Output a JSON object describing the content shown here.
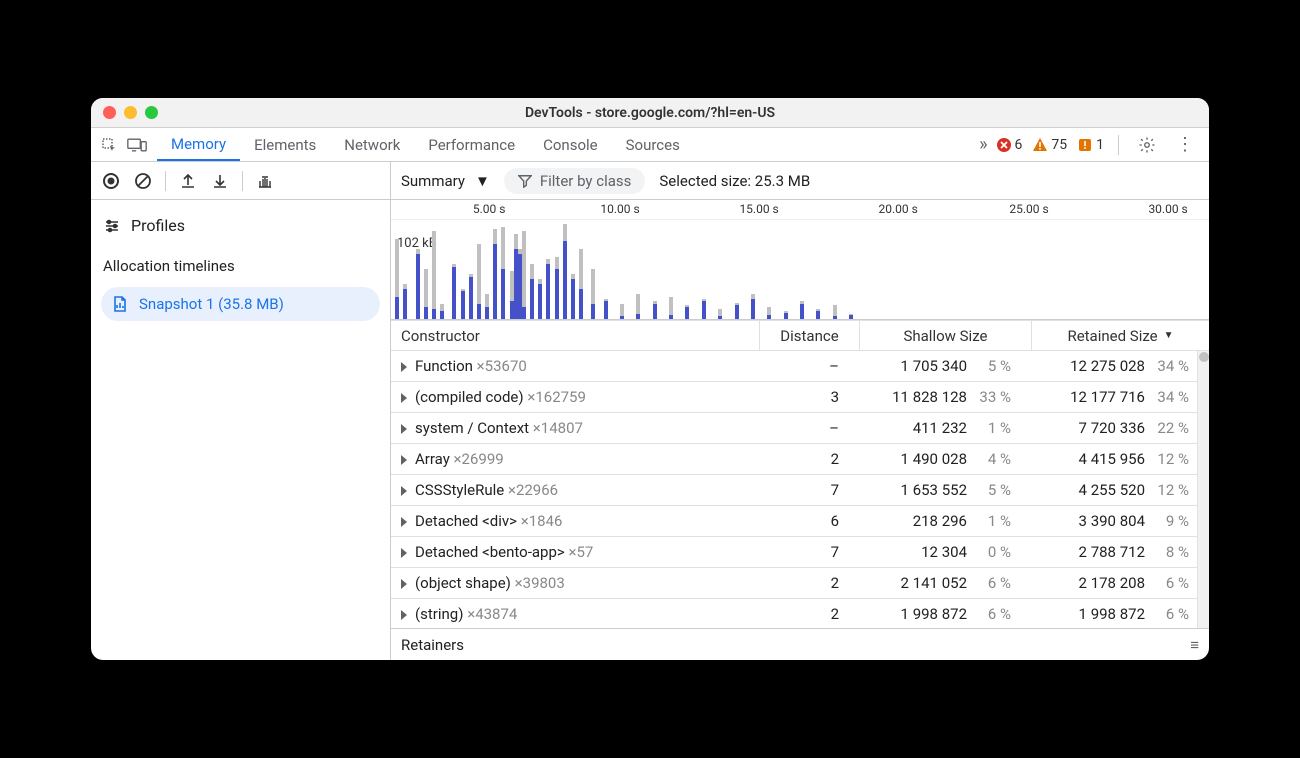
{
  "window": {
    "title": "DevTools - store.google.com/?hl=en-US"
  },
  "tabs": {
    "items": [
      "Memory",
      "Elements",
      "Network",
      "Performance",
      "Console",
      "Sources"
    ],
    "active_index": 0
  },
  "status": {
    "errors": 6,
    "warnings": 75,
    "issues": 1
  },
  "memory_toolbar": {
    "view": "Summary",
    "filter_placeholder": "Filter by class",
    "selected_label": "Selected size: 25.3 MB"
  },
  "sidebar": {
    "profiles_label": "Profiles",
    "section_label": "Allocation timelines",
    "snapshot_label": "Snapshot 1 (35.8 MB)"
  },
  "timeline": {
    "ticks": [
      {
        "pos": 12,
        "label": "5.00 s"
      },
      {
        "pos": 28,
        "label": "10.00 s"
      },
      {
        "pos": 45,
        "label": "15.00 s"
      },
      {
        "pos": 62,
        "label": "20.00 s"
      },
      {
        "pos": 78,
        "label": "25.00 s"
      },
      {
        "pos": 95,
        "label": "30.00 s"
      }
    ],
    "y_label": "102 kB",
    "bars": [
      {
        "x": 0.5,
        "gray": 80,
        "blue": 22
      },
      {
        "x": 1.5,
        "gray": 35,
        "blue": 30
      },
      {
        "x": 3.0,
        "gray": 70,
        "blue": 65
      },
      {
        "x": 4.0,
        "gray": 50,
        "blue": 12
      },
      {
        "x": 5.0,
        "gray": 88,
        "blue": 10
      },
      {
        "x": 6.0,
        "gray": 15,
        "blue": 8
      },
      {
        "x": 7.5,
        "gray": 55,
        "blue": 52
      },
      {
        "x": 8.5,
        "gray": 30,
        "blue": 28
      },
      {
        "x": 9.5,
        "gray": 45,
        "blue": 42
      },
      {
        "x": 10.5,
        "gray": 75,
        "blue": 15
      },
      {
        "x": 11.5,
        "gray": 25,
        "blue": 12
      },
      {
        "x": 12.5,
        "gray": 90,
        "blue": 75
      },
      {
        "x": 13.5,
        "gray": 92,
        "blue": 50
      },
      {
        "x": 14.5,
        "gray": 48,
        "blue": 18
      },
      {
        "x": 15.0,
        "gray": 85,
        "blue": 70
      },
      {
        "x": 15.5,
        "gray": 70,
        "blue": 65
      },
      {
        "x": 16.0,
        "gray": 88,
        "blue": 12
      },
      {
        "x": 17.0,
        "gray": 55,
        "blue": 40
      },
      {
        "x": 18.0,
        "gray": 40,
        "blue": 35
      },
      {
        "x": 19.0,
        "gray": 60,
        "blue": 55
      },
      {
        "x": 20.0,
        "gray": 62,
        "blue": 50
      },
      {
        "x": 21.0,
        "gray": 95,
        "blue": 78
      },
      {
        "x": 22.0,
        "gray": 45,
        "blue": 40
      },
      {
        "x": 23.0,
        "gray": 70,
        "blue": 30
      },
      {
        "x": 24.5,
        "gray": 50,
        "blue": 15
      },
      {
        "x": 26.0,
        "gray": 20,
        "blue": 18
      },
      {
        "x": 28.0,
        "gray": 15,
        "blue": 3
      },
      {
        "x": 30.0,
        "gray": 25,
        "blue": 5
      },
      {
        "x": 32.0,
        "gray": 18,
        "blue": 15
      },
      {
        "x": 34.0,
        "gray": 22,
        "blue": 4
      },
      {
        "x": 36.0,
        "gray": 14,
        "blue": 12
      },
      {
        "x": 38.0,
        "gray": 20,
        "blue": 18
      },
      {
        "x": 40.0,
        "gray": 10,
        "blue": 3
      },
      {
        "x": 42.0,
        "gray": 16,
        "blue": 14
      },
      {
        "x": 44.0,
        "gray": 25,
        "blue": 20
      },
      {
        "x": 46.0,
        "gray": 12,
        "blue": 4
      },
      {
        "x": 48.0,
        "gray": 8,
        "blue": 6
      },
      {
        "x": 50.0,
        "gray": 18,
        "blue": 15
      },
      {
        "x": 52.0,
        "gray": 10,
        "blue": 8
      },
      {
        "x": 54.0,
        "gray": 14,
        "blue": 3
      },
      {
        "x": 56.0,
        "gray": 5,
        "blue": 4
      }
    ]
  },
  "table": {
    "columns": {
      "constructor": "Constructor",
      "distance": "Distance",
      "shallow": "Shallow Size",
      "retained": "Retained Size"
    },
    "sort_col": "retained",
    "rows": [
      {
        "name": "Function",
        "count": "×53670",
        "distance": "–",
        "shallow": "1 705 340",
        "shallow_pct": "5 %",
        "retained": "12 275 028",
        "retained_pct": "34 %"
      },
      {
        "name": "(compiled code)",
        "count": "×162759",
        "distance": "3",
        "shallow": "11 828 128",
        "shallow_pct": "33 %",
        "retained": "12 177 716",
        "retained_pct": "34 %"
      },
      {
        "name": "system / Context",
        "count": "×14807",
        "distance": "–",
        "shallow": "411 232",
        "shallow_pct": "1 %",
        "retained": "7 720 336",
        "retained_pct": "22 %"
      },
      {
        "name": "Array",
        "count": "×26999",
        "distance": "2",
        "shallow": "1 490 028",
        "shallow_pct": "4 %",
        "retained": "4 415 956",
        "retained_pct": "12 %"
      },
      {
        "name": "CSSStyleRule",
        "count": "×22966",
        "distance": "7",
        "shallow": "1 653 552",
        "shallow_pct": "5 %",
        "retained": "4 255 520",
        "retained_pct": "12 %"
      },
      {
        "name": "Detached <div>",
        "count": "×1846",
        "distance": "6",
        "shallow": "218 296",
        "shallow_pct": "1 %",
        "retained": "3 390 804",
        "retained_pct": "9 %"
      },
      {
        "name": "Detached <bento-app>",
        "count": "×57",
        "distance": "7",
        "shallow": "12 304",
        "shallow_pct": "0 %",
        "retained": "2 788 712",
        "retained_pct": "8 %"
      },
      {
        "name": "(object shape)",
        "count": "×39803",
        "distance": "2",
        "shallow": "2 141 052",
        "shallow_pct": "6 %",
        "retained": "2 178 208",
        "retained_pct": "6 %"
      },
      {
        "name": "(string)",
        "count": "×43874",
        "distance": "2",
        "shallow": "1 998 872",
        "shallow_pct": "6 %",
        "retained": "1 998 872",
        "retained_pct": "6 %"
      }
    ]
  },
  "retainers": {
    "label": "Retainers"
  },
  "colors": {
    "active": "#1a73e8",
    "error": "#d93025",
    "warning": "#e37400",
    "issue": "#e37400",
    "bar_blue": "#4451c8",
    "bar_gray": "#c0c0c0"
  }
}
